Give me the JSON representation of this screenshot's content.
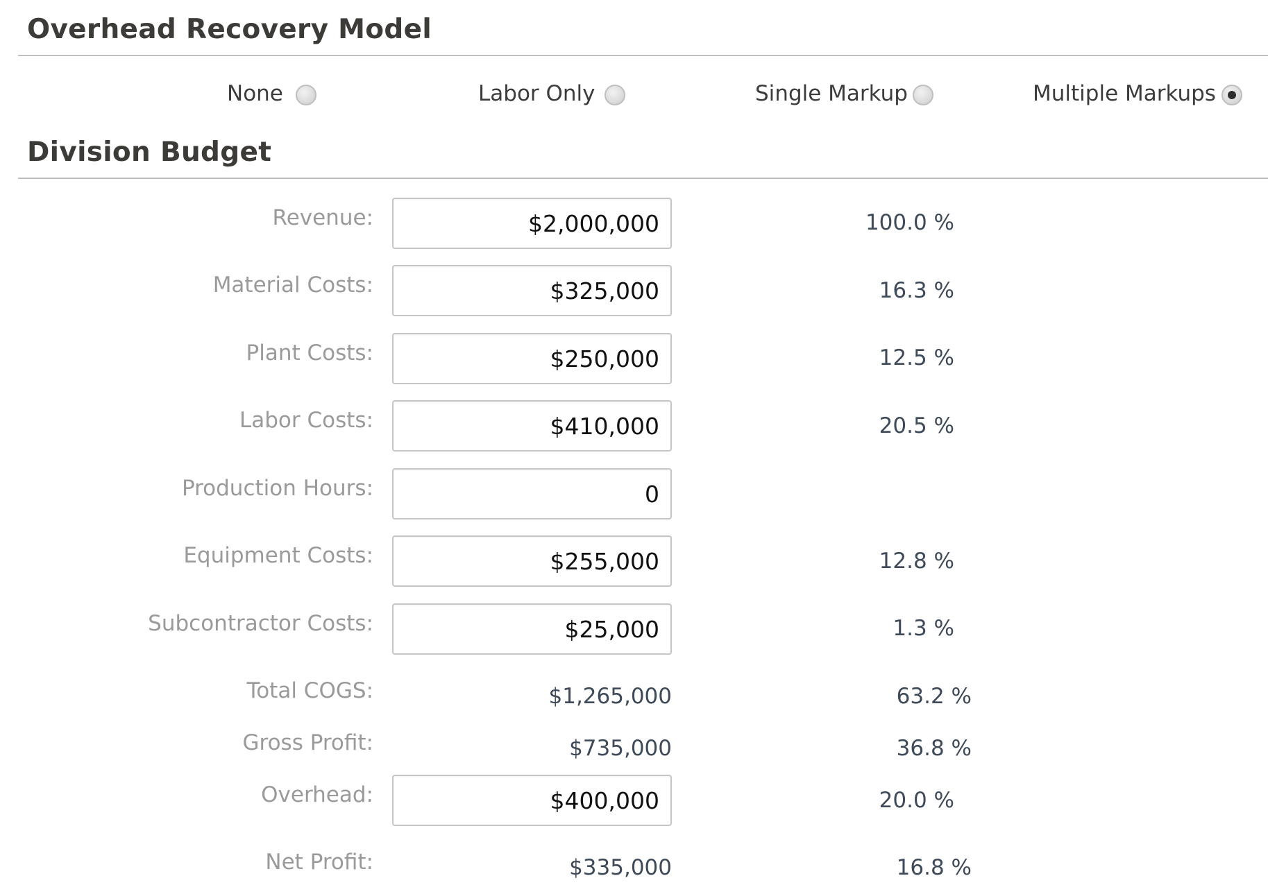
{
  "overhead_model": {
    "title": "Overhead Recovery Model",
    "options": [
      {
        "label": "None",
        "checked": false
      },
      {
        "label": "Labor Only",
        "checked": false
      },
      {
        "label": "Single Markup",
        "checked": false
      },
      {
        "label": "Multiple Markups",
        "checked": true
      }
    ]
  },
  "division_budget": {
    "title": "Division Budget",
    "rows": [
      {
        "label": "Revenue:",
        "value": "$2,000,000",
        "percent": "100.0 %",
        "editable": true
      },
      {
        "label": "Material Costs:",
        "value": "$325,000",
        "percent": "16.3 %",
        "editable": true
      },
      {
        "label": "Plant Costs:",
        "value": "$250,000",
        "percent": "12.5 %",
        "editable": true
      },
      {
        "label": "Labor Costs:",
        "value": "$410,000",
        "percent": "20.5 %",
        "editable": true
      },
      {
        "label": "Production Hours:",
        "value": "0",
        "percent": "",
        "editable": true
      },
      {
        "label": "Equipment Costs:",
        "value": "$255,000",
        "percent": "12.8 %",
        "editable": true
      },
      {
        "label": "Subcontractor Costs:",
        "value": "$25,000",
        "percent": "1.3 %",
        "editable": true
      },
      {
        "label": "Total COGS:",
        "value": "$1,265,000",
        "percent": "63.2 %",
        "editable": false
      },
      {
        "label": "Gross Profit:",
        "value": "$735,000",
        "percent": "36.8 %",
        "editable": false
      },
      {
        "label": "Overhead:",
        "value": "$400,000",
        "percent": "20.0 %",
        "editable": true
      },
      {
        "label": "Net Profit:",
        "value": "$335,000",
        "percent": "16.8 %",
        "editable": false
      }
    ]
  }
}
